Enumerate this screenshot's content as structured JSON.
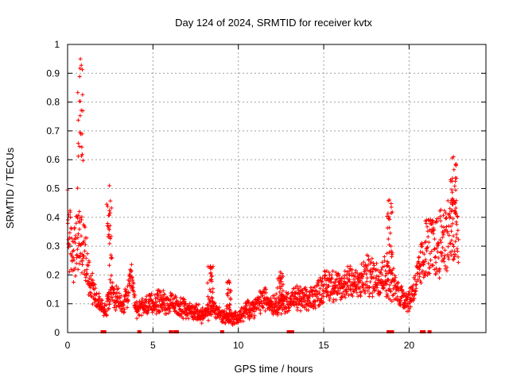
{
  "chart_data": {
    "type": "scatter",
    "title": "Day 124 of 2024, SRMTID for receiver kvtx",
    "xlabel": "GPS time / hours",
    "ylabel": "SRMTID / TECUs",
    "xlim": [
      0,
      24.5
    ],
    "ylim": [
      0,
      1
    ],
    "xticks": [
      "0",
      "5",
      "10",
      "15",
      "20"
    ],
    "yticks": [
      "0",
      "0.1",
      "0.2",
      "0.3",
      "0.4",
      "0.5",
      "0.6",
      "0.7",
      "0.8",
      "0.9",
      "1"
    ],
    "grid": true,
    "marker": "+",
    "color": "#ff0000",
    "profile": [
      [
        0.0,
        0.37
      ],
      [
        0.25,
        0.28
      ],
      [
        0.5,
        0.3
      ],
      [
        0.75,
        0.32
      ],
      [
        1.0,
        0.28
      ],
      [
        1.25,
        0.2
      ],
      [
        1.5,
        0.15
      ],
      [
        1.75,
        0.11
      ],
      [
        2.0,
        0.09
      ],
      [
        2.25,
        0.08
      ],
      [
        2.5,
        0.16
      ],
      [
        2.75,
        0.12
      ],
      [
        3.0,
        0.11
      ],
      [
        3.25,
        0.09
      ],
      [
        3.5,
        0.13
      ],
      [
        3.75,
        0.18
      ],
      [
        4.0,
        0.08
      ],
      [
        4.5,
        0.09
      ],
      [
        5.0,
        0.1
      ],
      [
        5.5,
        0.11
      ],
      [
        6.0,
        0.1
      ],
      [
        6.5,
        0.09
      ],
      [
        7.0,
        0.08
      ],
      [
        7.5,
        0.07
      ],
      [
        8.0,
        0.06
      ],
      [
        8.5,
        0.09
      ],
      [
        9.0,
        0.06
      ],
      [
        9.5,
        0.05
      ],
      [
        10.0,
        0.05
      ],
      [
        10.5,
        0.08
      ],
      [
        11.0,
        0.09
      ],
      [
        11.5,
        0.12
      ],
      [
        12.0,
        0.1
      ],
      [
        12.5,
        0.1
      ],
      [
        13.0,
        0.11
      ],
      [
        13.5,
        0.12
      ],
      [
        14.0,
        0.11
      ],
      [
        14.5,
        0.13
      ],
      [
        15.0,
        0.16
      ],
      [
        15.5,
        0.17
      ],
      [
        16.0,
        0.15
      ],
      [
        16.5,
        0.19
      ],
      [
        17.0,
        0.16
      ],
      [
        17.5,
        0.2
      ],
      [
        18.0,
        0.19
      ],
      [
        18.5,
        0.2
      ],
      [
        19.0,
        0.17
      ],
      [
        19.5,
        0.13
      ],
      [
        20.0,
        0.11
      ],
      [
        20.5,
        0.19
      ],
      [
        21.0,
        0.3
      ],
      [
        21.5,
        0.29
      ],
      [
        22.0,
        0.33
      ],
      [
        22.5,
        0.35
      ],
      [
        22.9,
        0.33
      ]
    ],
    "spikes": [
      {
        "x": 0.75,
        "peak": 0.95
      },
      {
        "x": 2.45,
        "peak": 0.51
      },
      {
        "x": 8.35,
        "peak": 0.23
      },
      {
        "x": 9.45,
        "peak": 0.18
      },
      {
        "x": 12.45,
        "peak": 0.21
      },
      {
        "x": 18.85,
        "peak": 0.46
      },
      {
        "x": 22.6,
        "peak": 0.61
      }
    ],
    "flag_hours": [
      2.05,
      2.15,
      4.2,
      6.05,
      6.3,
      6.4,
      9.05,
      12.95,
      13.15,
      18.8,
      18.9,
      19.0,
      20.75,
      20.85,
      21.2
    ]
  }
}
